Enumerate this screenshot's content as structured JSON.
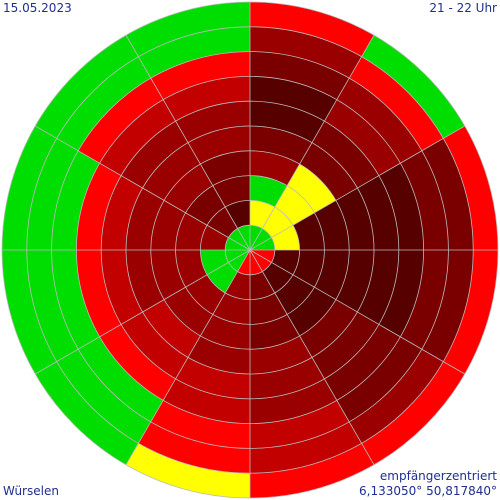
{
  "labels": {
    "date": "15.05.2023",
    "time_range": "21 - 22 Uhr",
    "location": "Würselen",
    "mode": "empfängerzentriert",
    "coordinates": "6,133050° 50,817840°"
  },
  "colors": {
    "background": "#ffffff",
    "grid": "#bbbbbb",
    "text": "#1f2f8f",
    "levels": [
      "#f0f0f0",
      "#ffff00",
      "#00dd00",
      "#ff0000",
      "#c20000",
      "#9a0000",
      "#7a0000",
      "#560000"
    ]
  },
  "chart_data": {
    "type": "polar",
    "description_levels": [
      "none",
      "yellow",
      "green",
      "red",
      "dark-red-1",
      "dark-red-2",
      "dark-red-3",
      "dark-red-4"
    ],
    "sector_count": 12,
    "ring_count": 10,
    "sector_start_angle_deg": -90,
    "sectors_clockwise": true,
    "cells": [
      [
        2,
        1,
        2,
        5,
        6,
        7,
        7,
        6,
        5,
        3
      ],
      [
        2,
        1,
        1,
        1,
        6,
        6,
        5,
        5,
        3,
        2
      ],
      [
        2,
        1,
        7,
        7,
        7,
        7,
        7,
        6,
        6,
        3
      ],
      [
        3,
        7,
        7,
        7,
        7,
        7,
        7,
        6,
        6,
        3
      ],
      [
        3,
        7,
        7,
        7,
        6,
        6,
        6,
        6,
        5,
        3
      ],
      [
        3,
        6,
        6,
        6,
        5,
        5,
        5,
        4,
        4,
        3
      ],
      [
        3,
        5,
        5,
        5,
        5,
        4,
        4,
        3,
        3,
        1
      ],
      [
        2,
        2,
        5,
        5,
        4,
        4,
        3,
        2,
        2,
        2
      ],
      [
        2,
        2,
        5,
        5,
        5,
        4,
        3,
        2,
        2,
        2
      ],
      [
        2,
        5,
        5,
        5,
        5,
        4,
        3,
        2,
        2,
        2
      ],
      [
        2,
        6,
        6,
        5,
        5,
        5,
        4,
        3,
        2,
        2
      ],
      [
        2,
        7,
        6,
        6,
        5,
        5,
        4,
        3,
        2,
        2
      ]
    ]
  }
}
